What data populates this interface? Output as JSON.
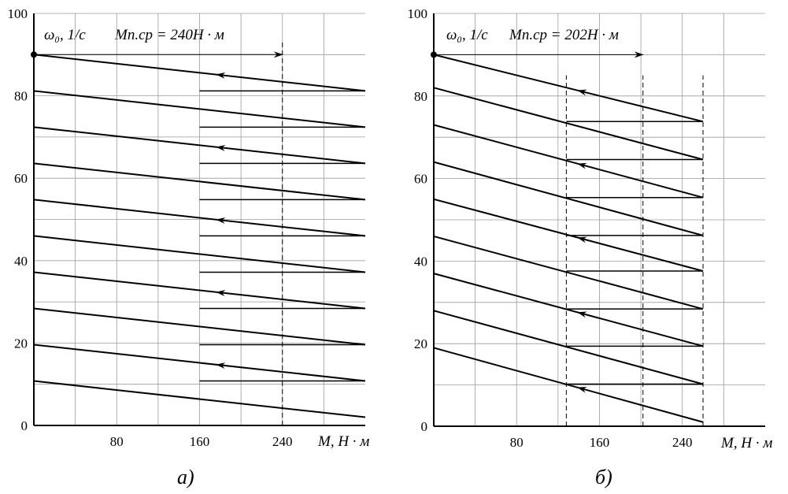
{
  "chart_data": [
    {
      "type": "line",
      "panel_label": "а)",
      "ylabel": "ω₀, 1/с",
      "xlabel": "M, Н · м",
      "annotation": "Mп.ср = 240Н · м",
      "xlim": [
        0,
        320
      ],
      "ylim": [
        0,
        100
      ],
      "xticks": [
        80,
        160,
        240
      ],
      "yticks": [
        0,
        20,
        40,
        60,
        80,
        100
      ],
      "grid": true,
      "start_point": [
        0,
        90
      ],
      "characteristics": [
        {
          "x": [
            0,
            320
          ],
          "y": [
            90,
            81.2
          ]
        },
        {
          "x": [
            0,
            320
          ],
          "y": [
            81.2,
            72.4
          ]
        },
        {
          "x": [
            0,
            320
          ],
          "y": [
            72.4,
            63.6
          ]
        },
        {
          "x": [
            0,
            320
          ],
          "y": [
            63.6,
            54.8
          ]
        },
        {
          "x": [
            0,
            320
          ],
          "y": [
            54.8,
            46.0
          ]
        },
        {
          "x": [
            0,
            320
          ],
          "y": [
            46.0,
            37.2
          ]
        },
        {
          "x": [
            0,
            320
          ],
          "y": [
            37.2,
            28.4
          ]
        },
        {
          "x": [
            0,
            320
          ],
          "y": [
            28.4,
            19.6
          ]
        },
        {
          "x": [
            0,
            320
          ],
          "y": [
            19.6,
            10.8
          ]
        },
        {
          "x": [
            0,
            320
          ],
          "y": [
            10.8,
            2.0
          ]
        }
      ],
      "switching_lines": {
        "x_from": 160,
        "x_to": 320
      },
      "dashed_x": [
        240
      ],
      "dashed_ylim": [
        0,
        93
      ]
    },
    {
      "type": "line",
      "panel_label": "б)",
      "ylabel": "ω₀, 1/с",
      "xlabel": "M, Н · м",
      "annotation": "Mп.ср = 202Н · м",
      "xlim": [
        0,
        320
      ],
      "ylim": [
        0,
        100
      ],
      "xticks": [
        80,
        160,
        240
      ],
      "yticks": [
        0,
        20,
        40,
        60,
        80,
        100
      ],
      "grid": true,
      "start_point": [
        0,
        90
      ],
      "characteristics": [
        {
          "x": [
            0,
            260
          ],
          "y": [
            90,
            73.8
          ]
        },
        {
          "x": [
            0,
            260
          ],
          "y": [
            82.0,
            64.6
          ]
        },
        {
          "x": [
            0,
            260
          ],
          "y": [
            73.0,
            55.4
          ]
        },
        {
          "x": [
            0,
            260
          ],
          "y": [
            64.0,
            46.2
          ]
        },
        {
          "x": [
            0,
            260
          ],
          "y": [
            55.0,
            37.6
          ]
        },
        {
          "x": [
            0,
            260
          ],
          "y": [
            46.0,
            28.4
          ]
        },
        {
          "x": [
            0,
            260
          ],
          "y": [
            37.0,
            19.4
          ]
        },
        {
          "x": [
            0,
            260
          ],
          "y": [
            28.0,
            10.2
          ]
        },
        {
          "x": [
            0,
            260
          ],
          "y": [
            19.0,
            1.0
          ]
        }
      ],
      "switching_lines": {
        "x_from": 128,
        "x_to": 260
      },
      "dashed_x": [
        128,
        202,
        260
      ],
      "dashed_ylim": [
        0,
        85
      ]
    }
  ]
}
